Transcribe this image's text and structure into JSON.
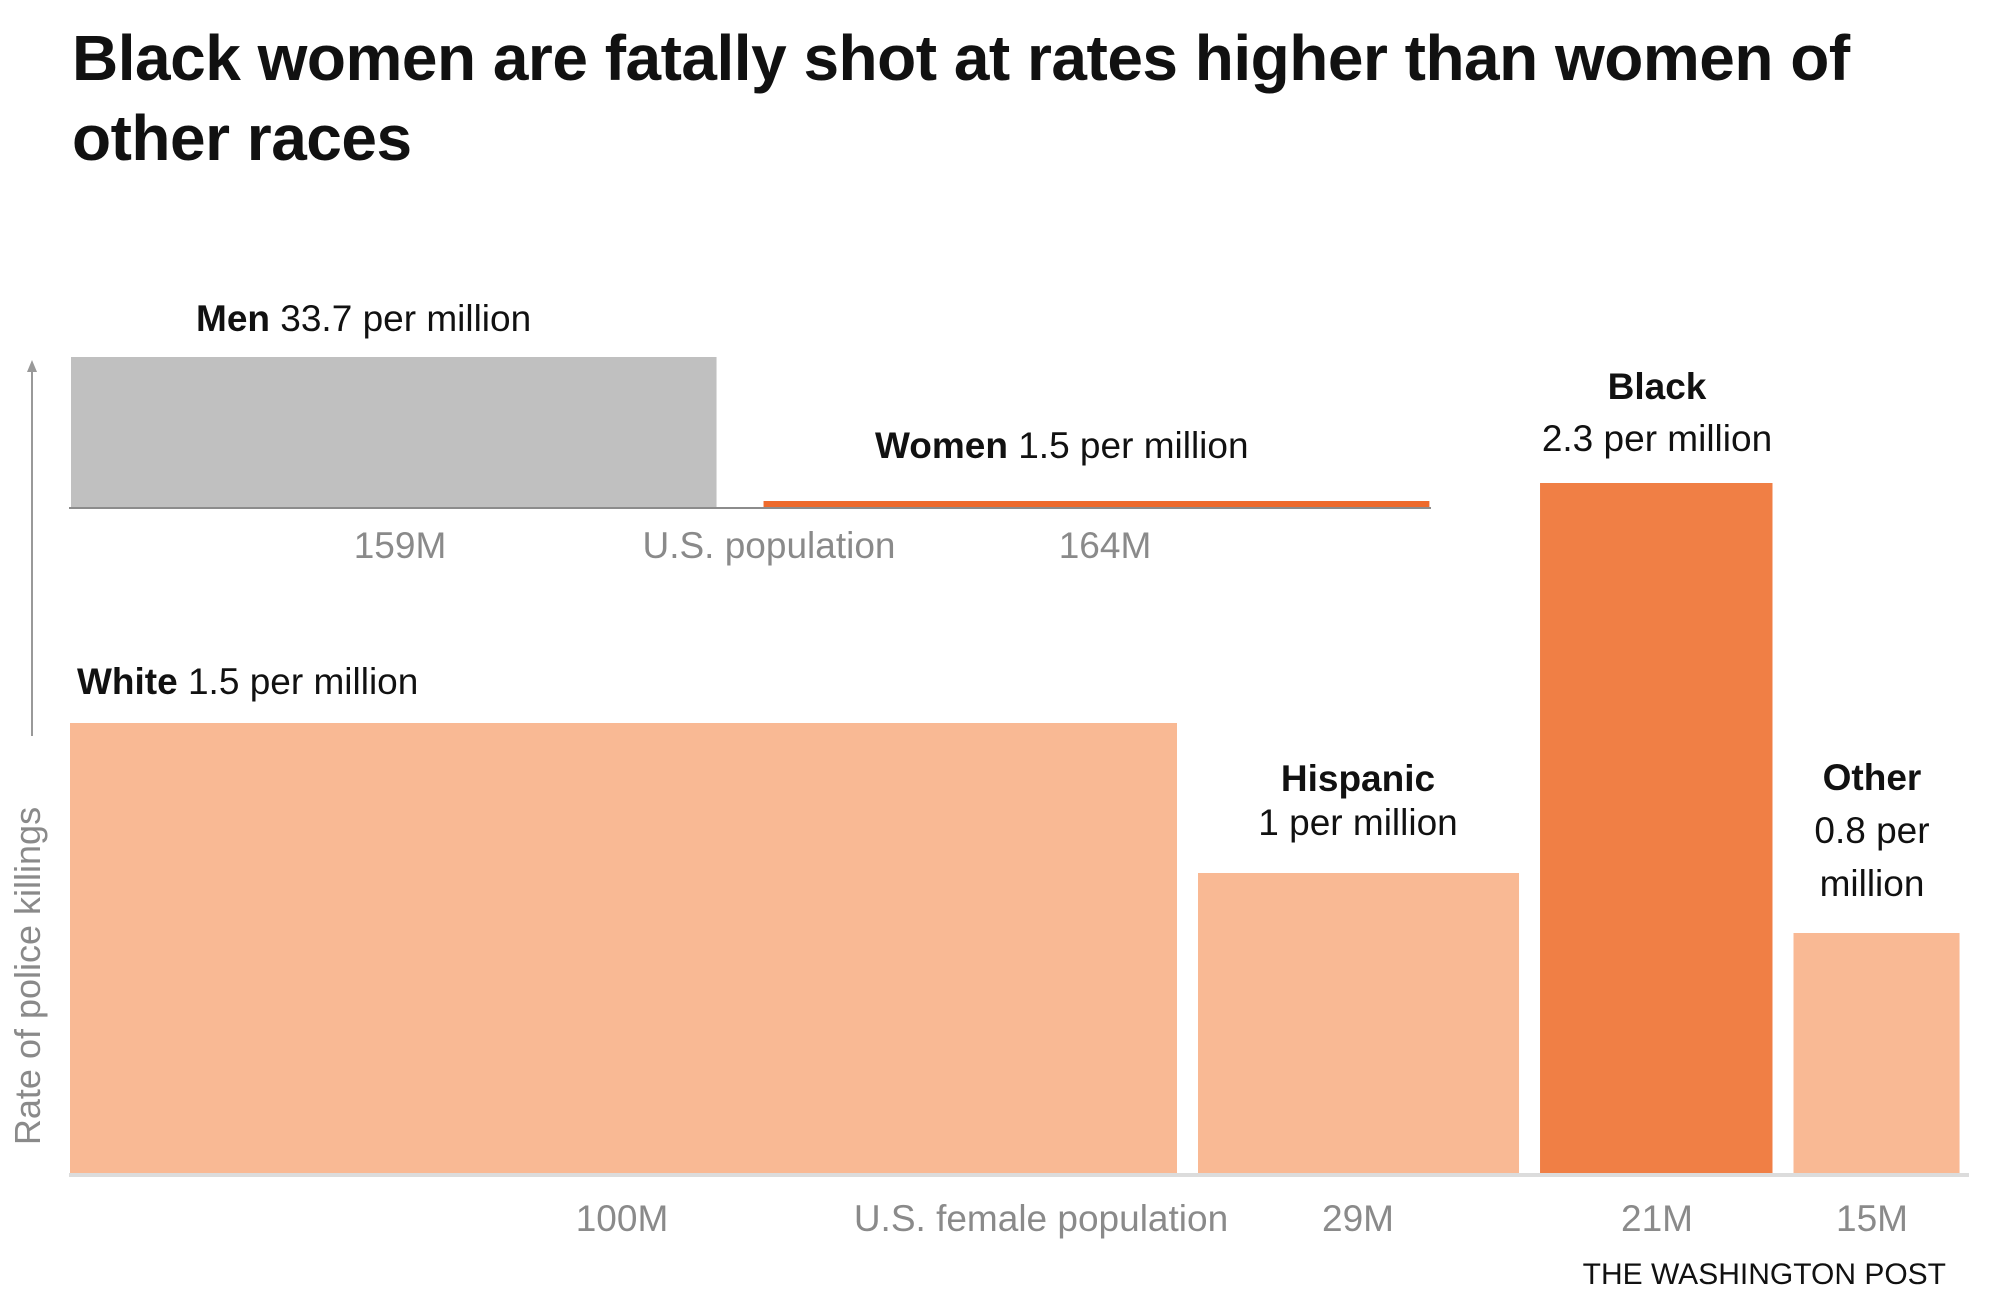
{
  "title": "Black women are fatally shot at rates higher than women of other races",
  "credit": "THE WASHINGTON POST",
  "chart_data": [
    {
      "type": "bar",
      "variant": "marimekko",
      "xlabel": "U.S. population",
      "ylabel": "Rate of police killings",
      "categories": [
        "Men",
        "Women"
      ],
      "widths_population_millions": [
        159,
        164
      ],
      "width_labels": [
        "159M",
        "164M"
      ],
      "values": [
        33.7,
        1.5
      ],
      "value_labels": [
        "33.7 per million",
        "1.5 per million"
      ],
      "unit": "per million",
      "colors": [
        "#c0c0c0",
        "#ee6a2c"
      ],
      "grid": false
    },
    {
      "type": "bar",
      "variant": "marimekko",
      "xlabel": "U.S. female population",
      "ylabel": "Rate of police killings",
      "categories": [
        "White",
        "Hispanic",
        "Black",
        "Other"
      ],
      "widths_population_millions": [
        100,
        29,
        21,
        15
      ],
      "width_labels": [
        "100M",
        "29M",
        "21M",
        "15M"
      ],
      "values": [
        1.5,
        1,
        2.3,
        0.8
      ],
      "value_labels": [
        "1.5 per million",
        "1 per million",
        "2.3 per million",
        "0.8 per million"
      ],
      "unit": "per million",
      "colors": [
        "#f9b994",
        "#f9b994",
        "#f07f45",
        "#f9b994"
      ],
      "grid": false
    }
  ]
}
